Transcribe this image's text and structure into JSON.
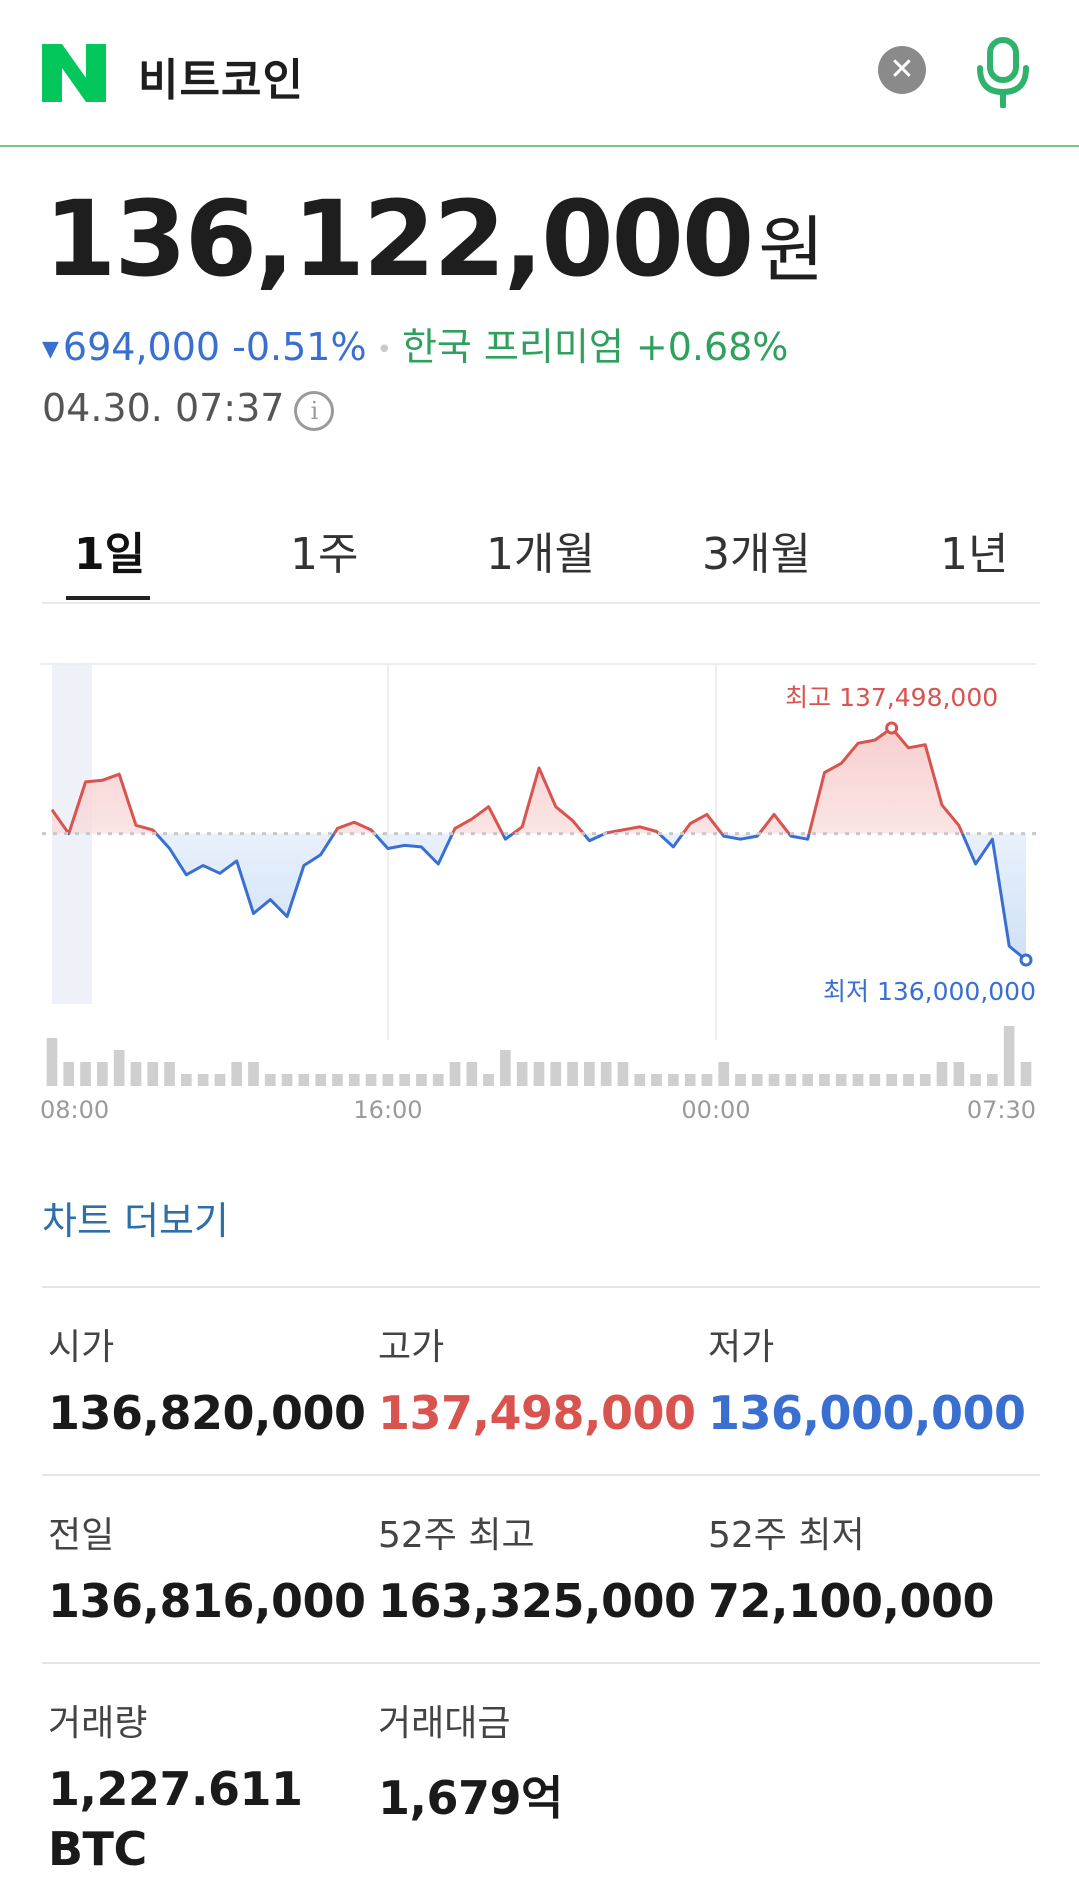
{
  "search": {
    "logo": "N",
    "query": "비트코인",
    "clear_icon": "close-icon",
    "mic_icon": "microphone-icon"
  },
  "price": {
    "value": "136,122,000",
    "unit": "원"
  },
  "change": {
    "arrow": "▼",
    "amount": "694,000",
    "percent": "-0.51%",
    "premium": "한국 프리미엄 +0.68%"
  },
  "timestamp": "04.30. 07:37",
  "tabs": [
    "1일",
    "1주",
    "1개월",
    "3개월",
    "1년"
  ],
  "chart_data": {
    "type": "line",
    "x_tick_labels": [
      "08:00",
      "16:00",
      "00:00",
      "07:30"
    ],
    "high_label": "최고 137,498,000",
    "low_label": "최저 136,000,000",
    "reference": 136816000,
    "y_range": [
      136000000,
      137498000
    ],
    "values": [
      136970000,
      136816000,
      137150000,
      137160000,
      137200000,
      136870000,
      136840000,
      136720000,
      136550000,
      136610000,
      136560000,
      136640000,
      136300000,
      136390000,
      136280000,
      136610000,
      136680000,
      136850000,
      136890000,
      136840000,
      136720000,
      136740000,
      136730000,
      136620000,
      136850000,
      136910000,
      136990000,
      136780000,
      136860000,
      137240000,
      136990000,
      136900000,
      136770000,
      136820000,
      136840000,
      136860000,
      136830000,
      136730000,
      136880000,
      136940000,
      136800000,
      136780000,
      136800000,
      136940000,
      136800000,
      136780000,
      137210000,
      137270000,
      137400000,
      137420000,
      137498000,
      137370000,
      137390000,
      137000000,
      136870000,
      136620000,
      136780000,
      136090000,
      136000000
    ],
    "volumes": [
      4,
      2,
      2,
      2,
      3,
      2,
      2,
      2,
      1,
      1,
      1,
      2,
      2,
      1,
      1,
      1,
      1,
      1,
      1,
      1,
      1,
      1,
      1,
      1,
      2,
      2,
      1,
      3,
      2,
      2,
      2,
      2,
      2,
      2,
      2,
      1,
      1,
      1,
      1,
      1,
      2,
      1,
      1,
      1,
      1,
      1,
      1,
      1,
      1,
      1,
      1,
      1,
      1,
      2,
      2,
      1,
      1,
      5,
      2
    ]
  },
  "chart_more": "차트 더보기",
  "stats": [
    {
      "label": "시가",
      "value": "136,820,000",
      "color": "#1a1a1a"
    },
    {
      "label": "고가",
      "value": "137,498,000",
      "color": "#d9534f"
    },
    {
      "label": "저가",
      "value": "136,000,000",
      "color": "#3a6fd2"
    },
    {
      "label": "전일",
      "value": "136,816,000",
      "color": "#1a1a1a"
    },
    {
      "label": "52주 최고",
      "value": "163,325,000",
      "color": "#1a1a1a"
    },
    {
      "label": "52주 최저",
      "value": "72,100,000",
      "color": "#1a1a1a"
    },
    {
      "label": "거래량",
      "value": "1,227.611",
      "value2": "BTC",
      "color": "#1a1a1a"
    },
    {
      "label": "거래대금",
      "value": "1,679억",
      "color": "#1a1a1a"
    }
  ],
  "colors": {
    "up": "#d9534f",
    "down": "#3a6fd2",
    "brand": "#03c75a"
  }
}
